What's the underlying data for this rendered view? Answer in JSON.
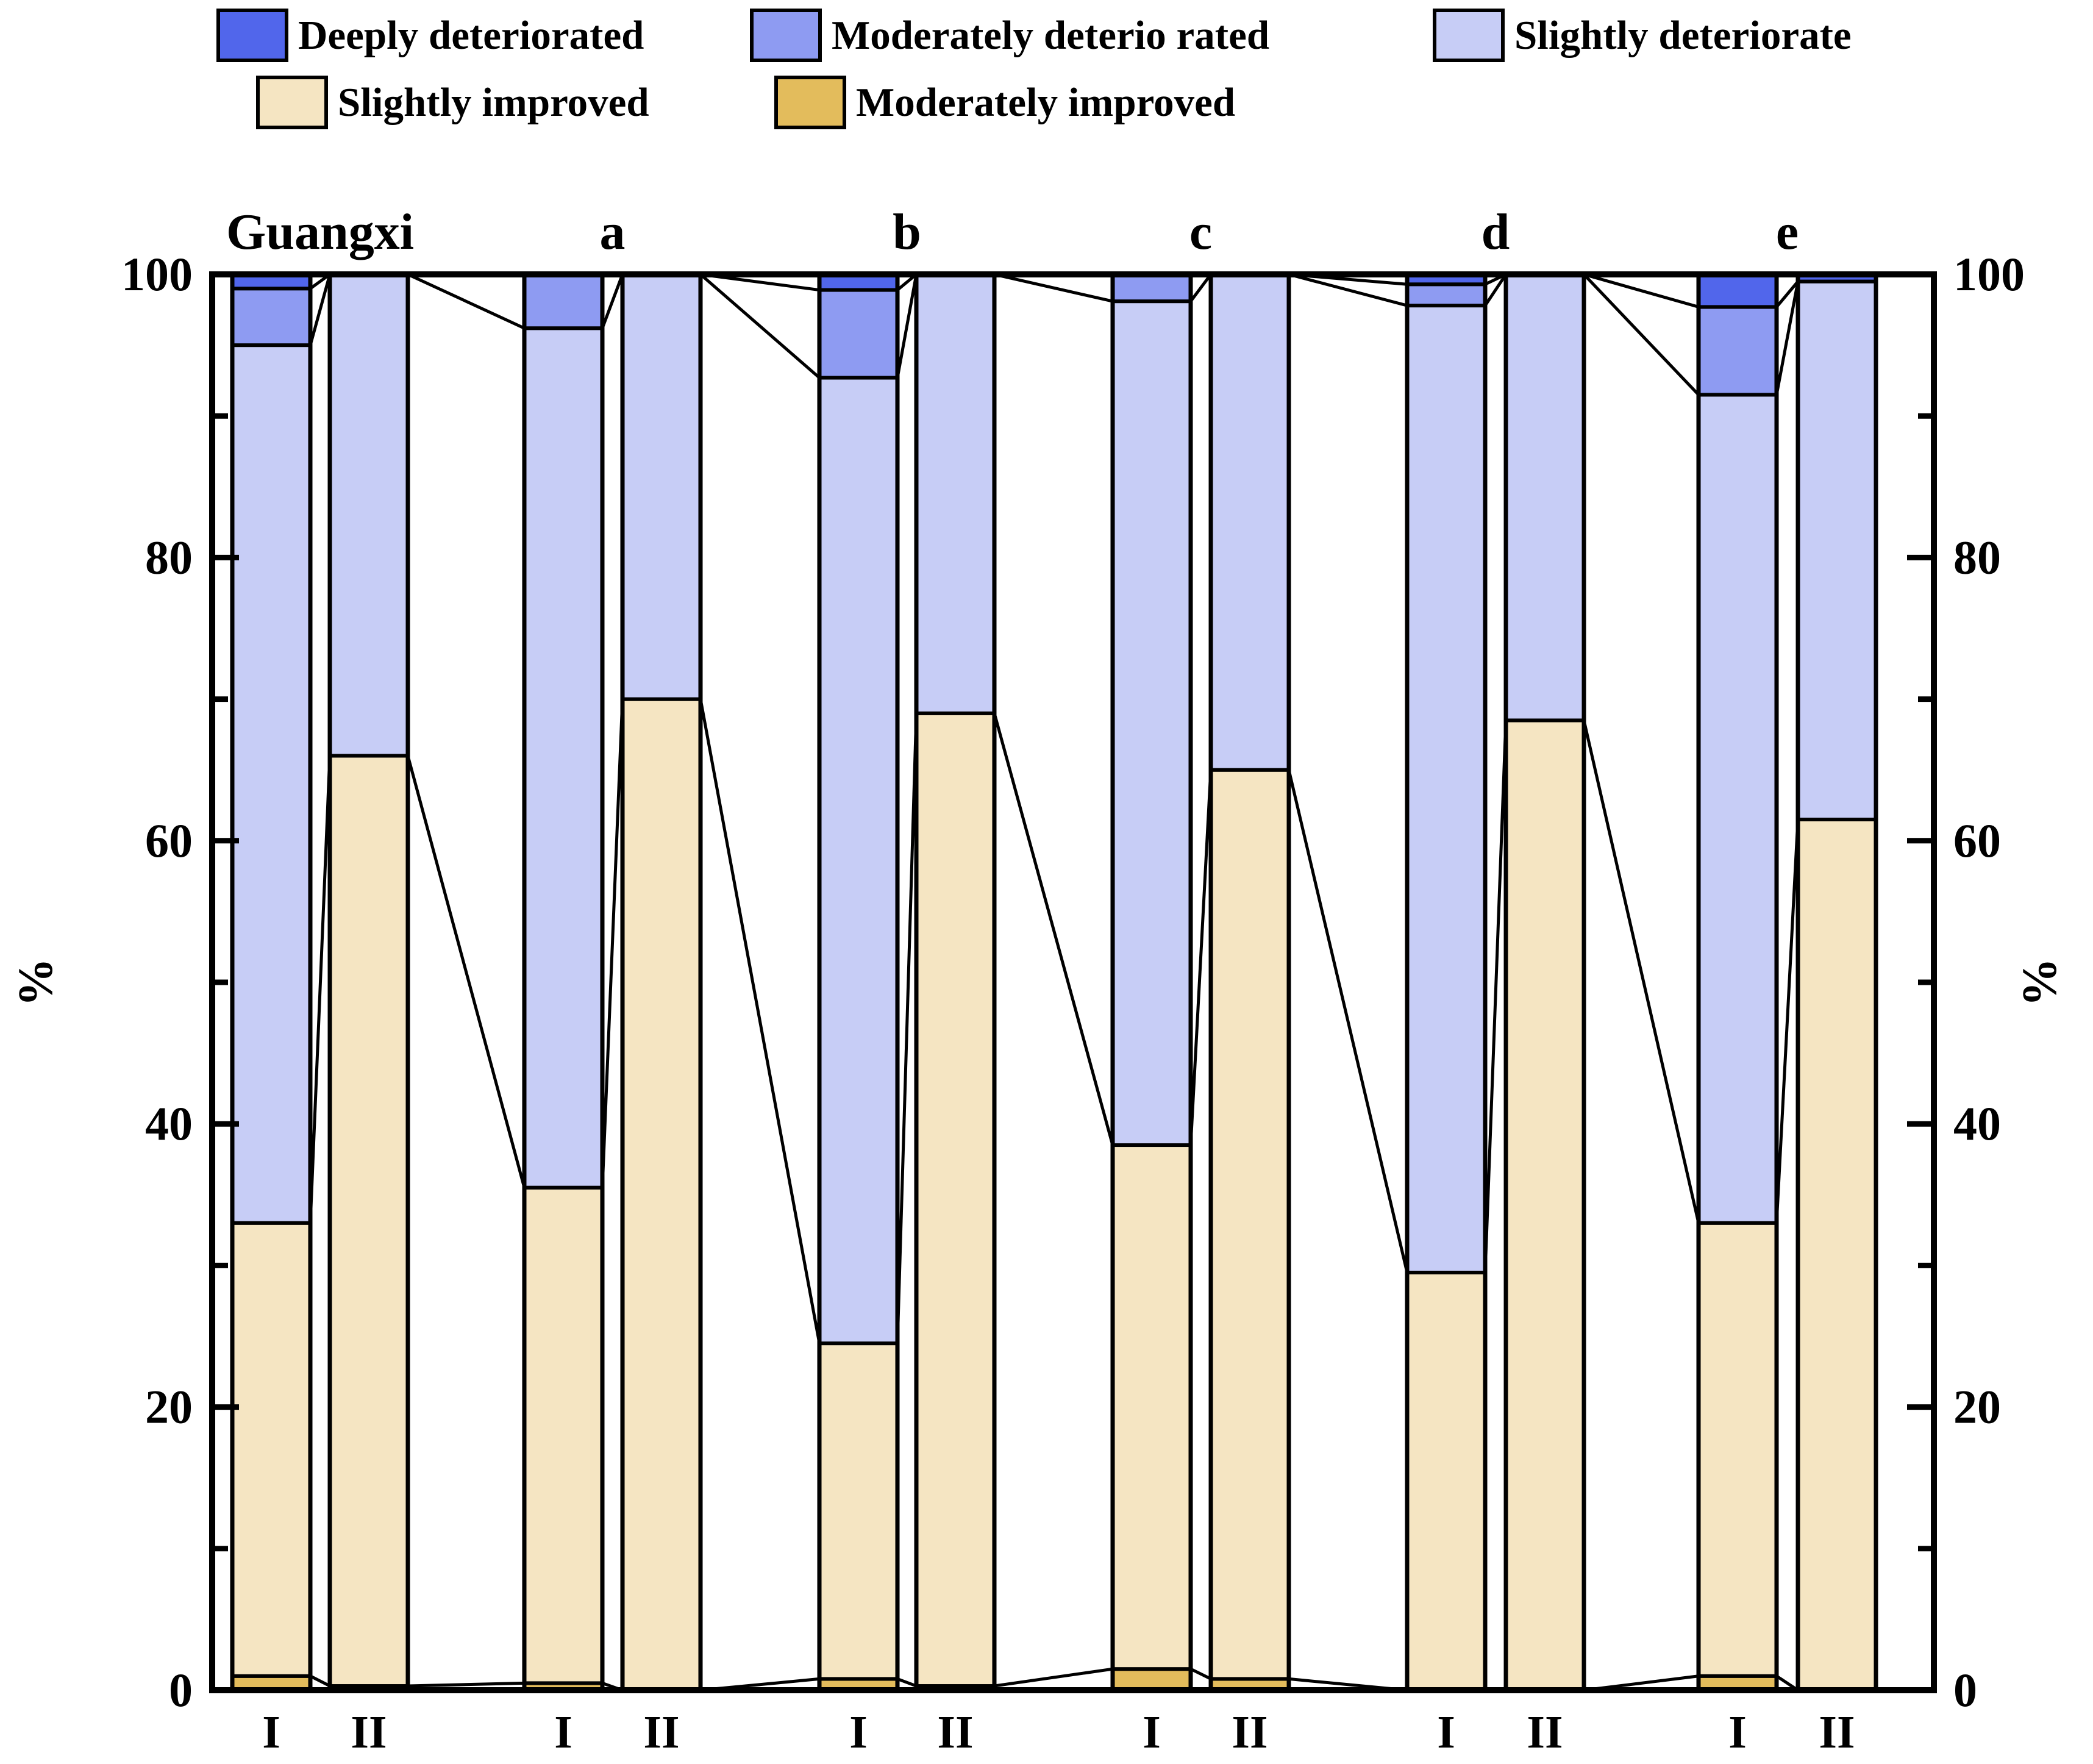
{
  "colors": {
    "deep_det": "#5166EB",
    "mod_det": "#8E9BF2",
    "sli_det": "#C7CDF6",
    "sli_imp": "#F5E5C2",
    "mod_imp": "#E3BC5C",
    "axis": "#000000"
  },
  "legend": {
    "row1": [
      {
        "key": "deep_det",
        "label": "Deeply deteriorated"
      },
      {
        "key": "mod_det",
        "label": "Moderately deterio rated"
      },
      {
        "key": "sli_det",
        "label": "Slightly deteriorate"
      }
    ],
    "row2": [
      {
        "key": "sli_imp",
        "label": "Slightly improved"
      },
      {
        "key": "mod_imp",
        "label": "Moderately improved"
      }
    ]
  },
  "chart_data": {
    "type": "bar",
    "variant": "stacked-percentage-with-connectors",
    "ylabel_left": "%",
    "ylabel_right": "%",
    "ylim": [
      0,
      100
    ],
    "yticks_major": [
      0,
      20,
      40,
      60,
      80,
      100
    ],
    "yticks_minor": [
      10,
      30,
      50,
      70,
      90
    ],
    "grid": false,
    "legend_position": "top",
    "connectors": true,
    "stack_order_bottom_to_top": [
      "mod_imp",
      "sli_imp",
      "sli_det",
      "mod_det",
      "deep_det"
    ],
    "series_labels": {
      "deep_det": "Deeply deteriorated",
      "mod_det": "Moderately deterio rated",
      "sli_det": "Slightly deteriorate",
      "sli_imp": "Slightly improved",
      "mod_imp": "Moderately improved"
    },
    "groups": [
      {
        "label": "Guangxi",
        "bars": [
          {
            "label": "I",
            "values": {
              "mod_imp": 1.0,
              "sli_imp": 32.0,
              "sli_det": 62.0,
              "mod_det": 4.0,
              "deep_det": 1.0
            }
          },
          {
            "label": "II",
            "values": {
              "mod_imp": 0.3,
              "sli_imp": 65.7,
              "sli_det": 34.0,
              "mod_det": 0.0,
              "deep_det": 0.0
            }
          }
        ]
      },
      {
        "label": "a",
        "bars": [
          {
            "label": "I",
            "values": {
              "mod_imp": 0.5,
              "sli_imp": 35.0,
              "sli_det": 60.7,
              "mod_det": 3.8,
              "deep_det": 0.0
            }
          },
          {
            "label": "II",
            "values": {
              "mod_imp": 0.0,
              "sli_imp": 70.0,
              "sli_det": 30.0,
              "mod_det": 0.0,
              "deep_det": 0.0
            }
          }
        ]
      },
      {
        "label": "b",
        "bars": [
          {
            "label": "I",
            "values": {
              "mod_imp": 0.8,
              "sli_imp": 23.7,
              "sli_det": 68.2,
              "mod_det": 6.2,
              "deep_det": 1.1
            }
          },
          {
            "label": "II",
            "values": {
              "mod_imp": 0.3,
              "sli_imp": 68.7,
              "sli_det": 31.0,
              "mod_det": 0.0,
              "deep_det": 0.0
            }
          }
        ]
      },
      {
        "label": "c",
        "bars": [
          {
            "label": "I",
            "values": {
              "mod_imp": 1.5,
              "sli_imp": 37.0,
              "sli_det": 59.6,
              "mod_det": 1.9,
              "deep_det": 0.0
            }
          },
          {
            "label": "II",
            "values": {
              "mod_imp": 0.8,
              "sli_imp": 64.2,
              "sli_det": 35.0,
              "mod_det": 0.0,
              "deep_det": 0.0
            }
          }
        ]
      },
      {
        "label": "d",
        "bars": [
          {
            "label": "I",
            "values": {
              "mod_imp": 0.0,
              "sli_imp": 29.5,
              "sli_det": 68.3,
              "mod_det": 1.5,
              "deep_det": 0.7
            }
          },
          {
            "label": "II",
            "values": {
              "mod_imp": 0.0,
              "sli_imp": 68.5,
              "sli_det": 31.5,
              "mod_det": 0.0,
              "deep_det": 0.0
            }
          }
        ]
      },
      {
        "label": "e",
        "bars": [
          {
            "label": "I",
            "values": {
              "mod_imp": 1.0,
              "sli_imp": 32.0,
              "sli_det": 58.5,
              "mod_det": 6.2,
              "deep_det": 2.3
            }
          },
          {
            "label": "II",
            "values": {
              "mod_imp": 0.0,
              "sli_imp": 61.5,
              "sli_det": 38.0,
              "mod_det": 0.0,
              "deep_det": 0.5
            }
          }
        ]
      }
    ]
  }
}
